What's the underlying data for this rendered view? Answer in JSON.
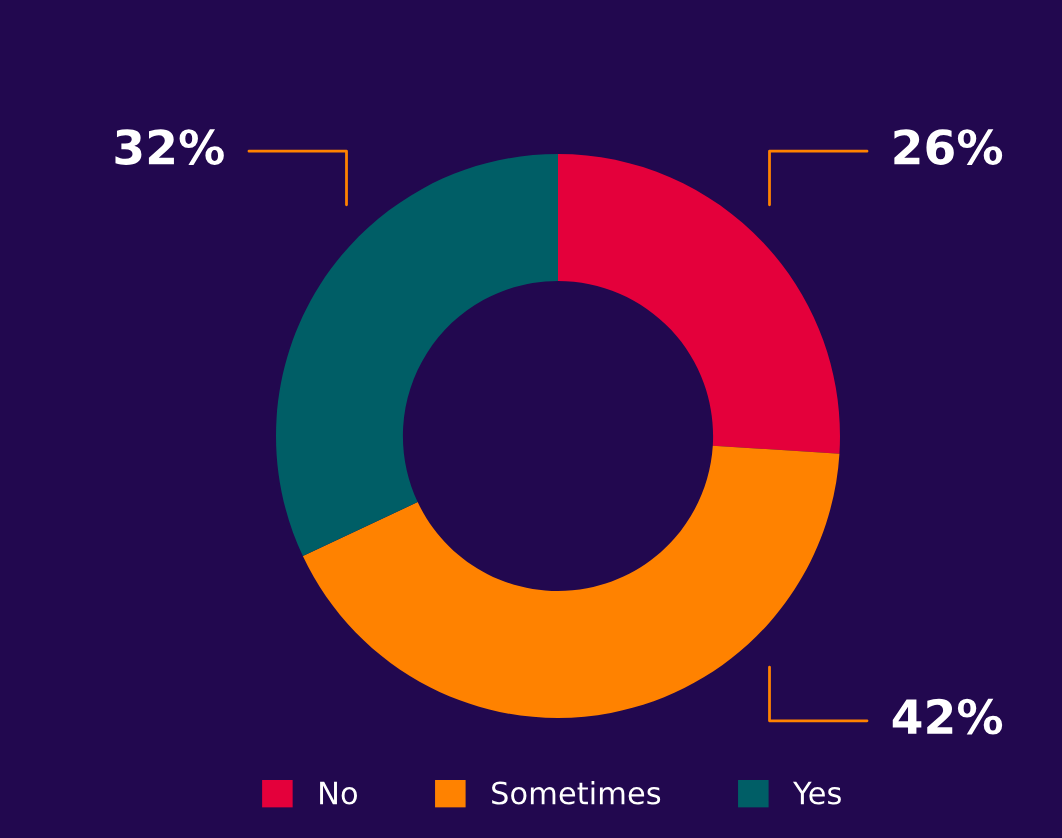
{
  "chart_data": {
    "type": "donut",
    "categories": [
      "No",
      "Sometimes",
      "Yes"
    ],
    "values": [
      26,
      42,
      32
    ],
    "colors": [
      "#e4003b",
      "#ff8200",
      "#005e66"
    ],
    "value_labels": [
      "26%",
      "42%",
      "32%"
    ],
    "legend": "bottom"
  }
}
